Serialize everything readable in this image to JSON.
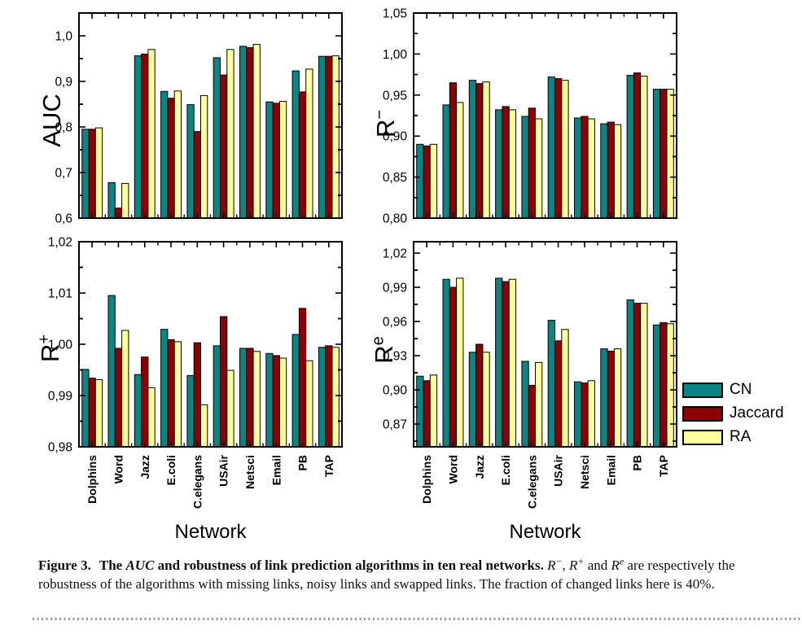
{
  "colors": {
    "cn": "#0D8484",
    "jaccard": "#8B0000",
    "ra": "#FFFF9E",
    "axis": "#000000",
    "dots": "#8b9595"
  },
  "categories": [
    "Dolphins",
    "Word",
    "Jazz",
    "E.coli",
    "C.elegans",
    "USAir",
    "Netsci",
    "Email",
    "PB",
    "TAP"
  ],
  "network_axis_title": "Network",
  "legend": {
    "items": [
      {
        "label": "CN",
        "color": "#0D8484"
      },
      {
        "label": "Jaccard",
        "color": "#8B0000"
      },
      {
        "label": "RA",
        "color": "#FFFF9E"
      }
    ]
  },
  "chart_data": [
    {
      "id": "auc",
      "type": "bar",
      "title": "",
      "ylabel": {
        "base": "AUC",
        "sup": ""
      },
      "xlabel": "Network",
      "ylim": [
        0.6,
        1.05
      ],
      "grid": false,
      "legend_position": "outside-right",
      "yticks": [
        {
          "v": 0.6,
          "label": "0,6"
        },
        {
          "v": 0.7,
          "label": "0,7"
        },
        {
          "v": 0.8,
          "label": "0,8"
        },
        {
          "v": 0.9,
          "label": "0,9"
        },
        {
          "v": 1.0,
          "label": "1,0"
        }
      ],
      "categories": [
        "Dolphins",
        "Word",
        "Jazz",
        "E.coli",
        "C.elegans",
        "USAir",
        "Netsci",
        "Email",
        "PB",
        "TAP"
      ],
      "series": [
        {
          "name": "CN",
          "key": "cn",
          "values": [
            0.795,
            0.678,
            0.956,
            0.878,
            0.849,
            0.952,
            0.977,
            0.855,
            0.923,
            0.955
          ]
        },
        {
          "name": "Jaccard",
          "key": "jaccard",
          "values": [
            0.795,
            0.622,
            0.96,
            0.863,
            0.79,
            0.914,
            0.974,
            0.852,
            0.877,
            0.955
          ]
        },
        {
          "name": "RA",
          "key": "ra",
          "values": [
            0.798,
            0.676,
            0.97,
            0.879,
            0.869,
            0.97,
            0.981,
            0.856,
            0.927,
            0.956
          ]
        }
      ]
    },
    {
      "id": "r-minus",
      "type": "bar",
      "title": "",
      "ylabel": {
        "base": "R",
        "sup": "−"
      },
      "xlabel": "Network",
      "ylim": [
        0.8,
        1.05
      ],
      "grid": false,
      "legend_position": "outside-right",
      "yticks": [
        {
          "v": 0.8,
          "label": "0,80"
        },
        {
          "v": 0.85,
          "label": "0,85"
        },
        {
          "v": 0.9,
          "label": "0,90"
        },
        {
          "v": 0.95,
          "label": "0,95"
        },
        {
          "v": 1.0,
          "label": "1,00"
        },
        {
          "v": 1.05,
          "label": "1,05"
        }
      ],
      "categories": [
        "Dolphins",
        "Word",
        "Jazz",
        "E.coli",
        "C.elegans",
        "USAir",
        "Netsci",
        "Email",
        "PB",
        "TAP"
      ],
      "series": [
        {
          "name": "CN",
          "key": "cn",
          "values": [
            0.89,
            0.938,
            0.968,
            0.932,
            0.924,
            0.972,
            0.922,
            0.915,
            0.974,
            0.957
          ]
        },
        {
          "name": "Jaccard",
          "key": "jaccard",
          "values": [
            0.888,
            0.965,
            0.964,
            0.936,
            0.934,
            0.97,
            0.924,
            0.917,
            0.977,
            0.957
          ]
        },
        {
          "name": "RA",
          "key": "ra",
          "values": [
            0.89,
            0.941,
            0.966,
            0.932,
            0.921,
            0.968,
            0.921,
            0.914,
            0.973,
            0.957
          ]
        }
      ]
    },
    {
      "id": "r-plus",
      "type": "bar",
      "title": "",
      "ylabel": {
        "base": "R",
        "sup": "+"
      },
      "xlabel": "Network",
      "ylim": [
        0.98,
        1.02
      ],
      "grid": false,
      "legend_position": "outside-right",
      "yticks": [
        {
          "v": 0.98,
          "label": "0,98"
        },
        {
          "v": 0.99,
          "label": "0,99"
        },
        {
          "v": 1.0,
          "label": "1,00"
        },
        {
          "v": 1.01,
          "label": "1,01"
        },
        {
          "v": 1.02,
          "label": "1,02"
        }
      ],
      "categories": [
        "Dolphins",
        "Word",
        "Jazz",
        "E.coli",
        "C.elegans",
        "USAir",
        "Netsci",
        "Email",
        "PB",
        "TAP"
      ],
      "series": [
        {
          "name": "CN",
          "key": "cn",
          "values": [
            0.9951,
            1.0095,
            0.9941,
            1.0029,
            0.9939,
            0.9997,
            0.9992,
            0.9982,
            1.0019,
            0.9994
          ]
        },
        {
          "name": "Jaccard",
          "key": "jaccard",
          "values": [
            0.9934,
            0.9992,
            0.9975,
            1.0009,
            1.0003,
            1.0054,
            0.9992,
            0.9978,
            1.007,
            0.9997
          ]
        },
        {
          "name": "RA",
          "key": "ra",
          "values": [
            0.9931,
            1.0027,
            0.9915,
            1.0005,
            0.9882,
            0.9949,
            0.9986,
            0.9973,
            0.9968,
            0.9994
          ]
        }
      ]
    },
    {
      "id": "r-e",
      "type": "bar",
      "title": "",
      "ylabel": {
        "base": "R",
        "sup": "e"
      },
      "xlabel": "Network",
      "ylim": [
        0.85,
        1.03
      ],
      "grid": false,
      "legend_position": "outside-right",
      "yticks": [
        {
          "v": 0.87,
          "label": "0,87"
        },
        {
          "v": 0.9,
          "label": "0,90"
        },
        {
          "v": 0.93,
          "label": "0,93"
        },
        {
          "v": 0.96,
          "label": "0,96"
        },
        {
          "v": 0.99,
          "label": "0,99"
        },
        {
          "v": 1.02,
          "label": "1,02"
        }
      ],
      "categories": [
        "Dolphins",
        "Word",
        "Jazz",
        "E.coli",
        "C.elegans",
        "USAir",
        "Netsci",
        "Email",
        "PB",
        "TAP"
      ],
      "series": [
        {
          "name": "CN",
          "key": "cn",
          "values": [
            0.912,
            0.997,
            0.933,
            0.998,
            0.925,
            0.961,
            0.907,
            0.936,
            0.979,
            0.957
          ]
        },
        {
          "name": "Jaccard",
          "key": "jaccard",
          "values": [
            0.908,
            0.99,
            0.94,
            0.995,
            0.904,
            0.943,
            0.906,
            0.934,
            0.976,
            0.959
          ]
        },
        {
          "name": "RA",
          "key": "ra",
          "values": [
            0.913,
            0.998,
            0.933,
            0.997,
            0.924,
            0.953,
            0.908,
            0.936,
            0.976,
            0.958
          ]
        }
      ]
    }
  ],
  "figure": {
    "caption": {
      "label": "Figure 3.",
      "b1": "The ",
      "b1i": "AUC",
      "b2": " and robustness of link prediction algorithms in ten real networks. ",
      "r1": "R",
      "r1sup": "−",
      "s1": ", ",
      "r2": "R",
      "r2sup": "+",
      "s2": " and ",
      "r3": "R",
      "r3sup": "e",
      "tail": " are respectively the robustness of the algorithms with missing links, noisy links and swapped links. The fraction of changed links here is 40%."
    }
  }
}
